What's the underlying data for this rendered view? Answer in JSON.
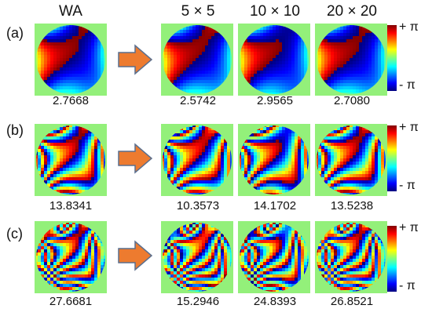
{
  "columns": [
    "WA",
    "5 × 5",
    "10 × 10",
    "20 × 20"
  ],
  "rows": [
    {
      "label": "(a)",
      "values": [
        "2.7668",
        "2.5742",
        "2.9565",
        "2.7080"
      ]
    },
    {
      "label": "(b)",
      "values": [
        "13.8341",
        "10.3573",
        "14.1702",
        "13.5238"
      ]
    },
    {
      "label": "(c)",
      "values": [
        "27.6681",
        "15.2946",
        "24.8393",
        "26.8521"
      ]
    }
  ],
  "colorbar": {
    "max_label": "+ π",
    "min_label": "- π"
  },
  "colors": {
    "panel_background": "#93f07a",
    "arrow": "#ed7b2f",
    "arrow_border": "#5a6f8e",
    "colormap": [
      "#00007f",
      "#0000ff",
      "#00ffff",
      "#ffff00",
      "#ff0000",
      "#7f0000"
    ]
  }
}
